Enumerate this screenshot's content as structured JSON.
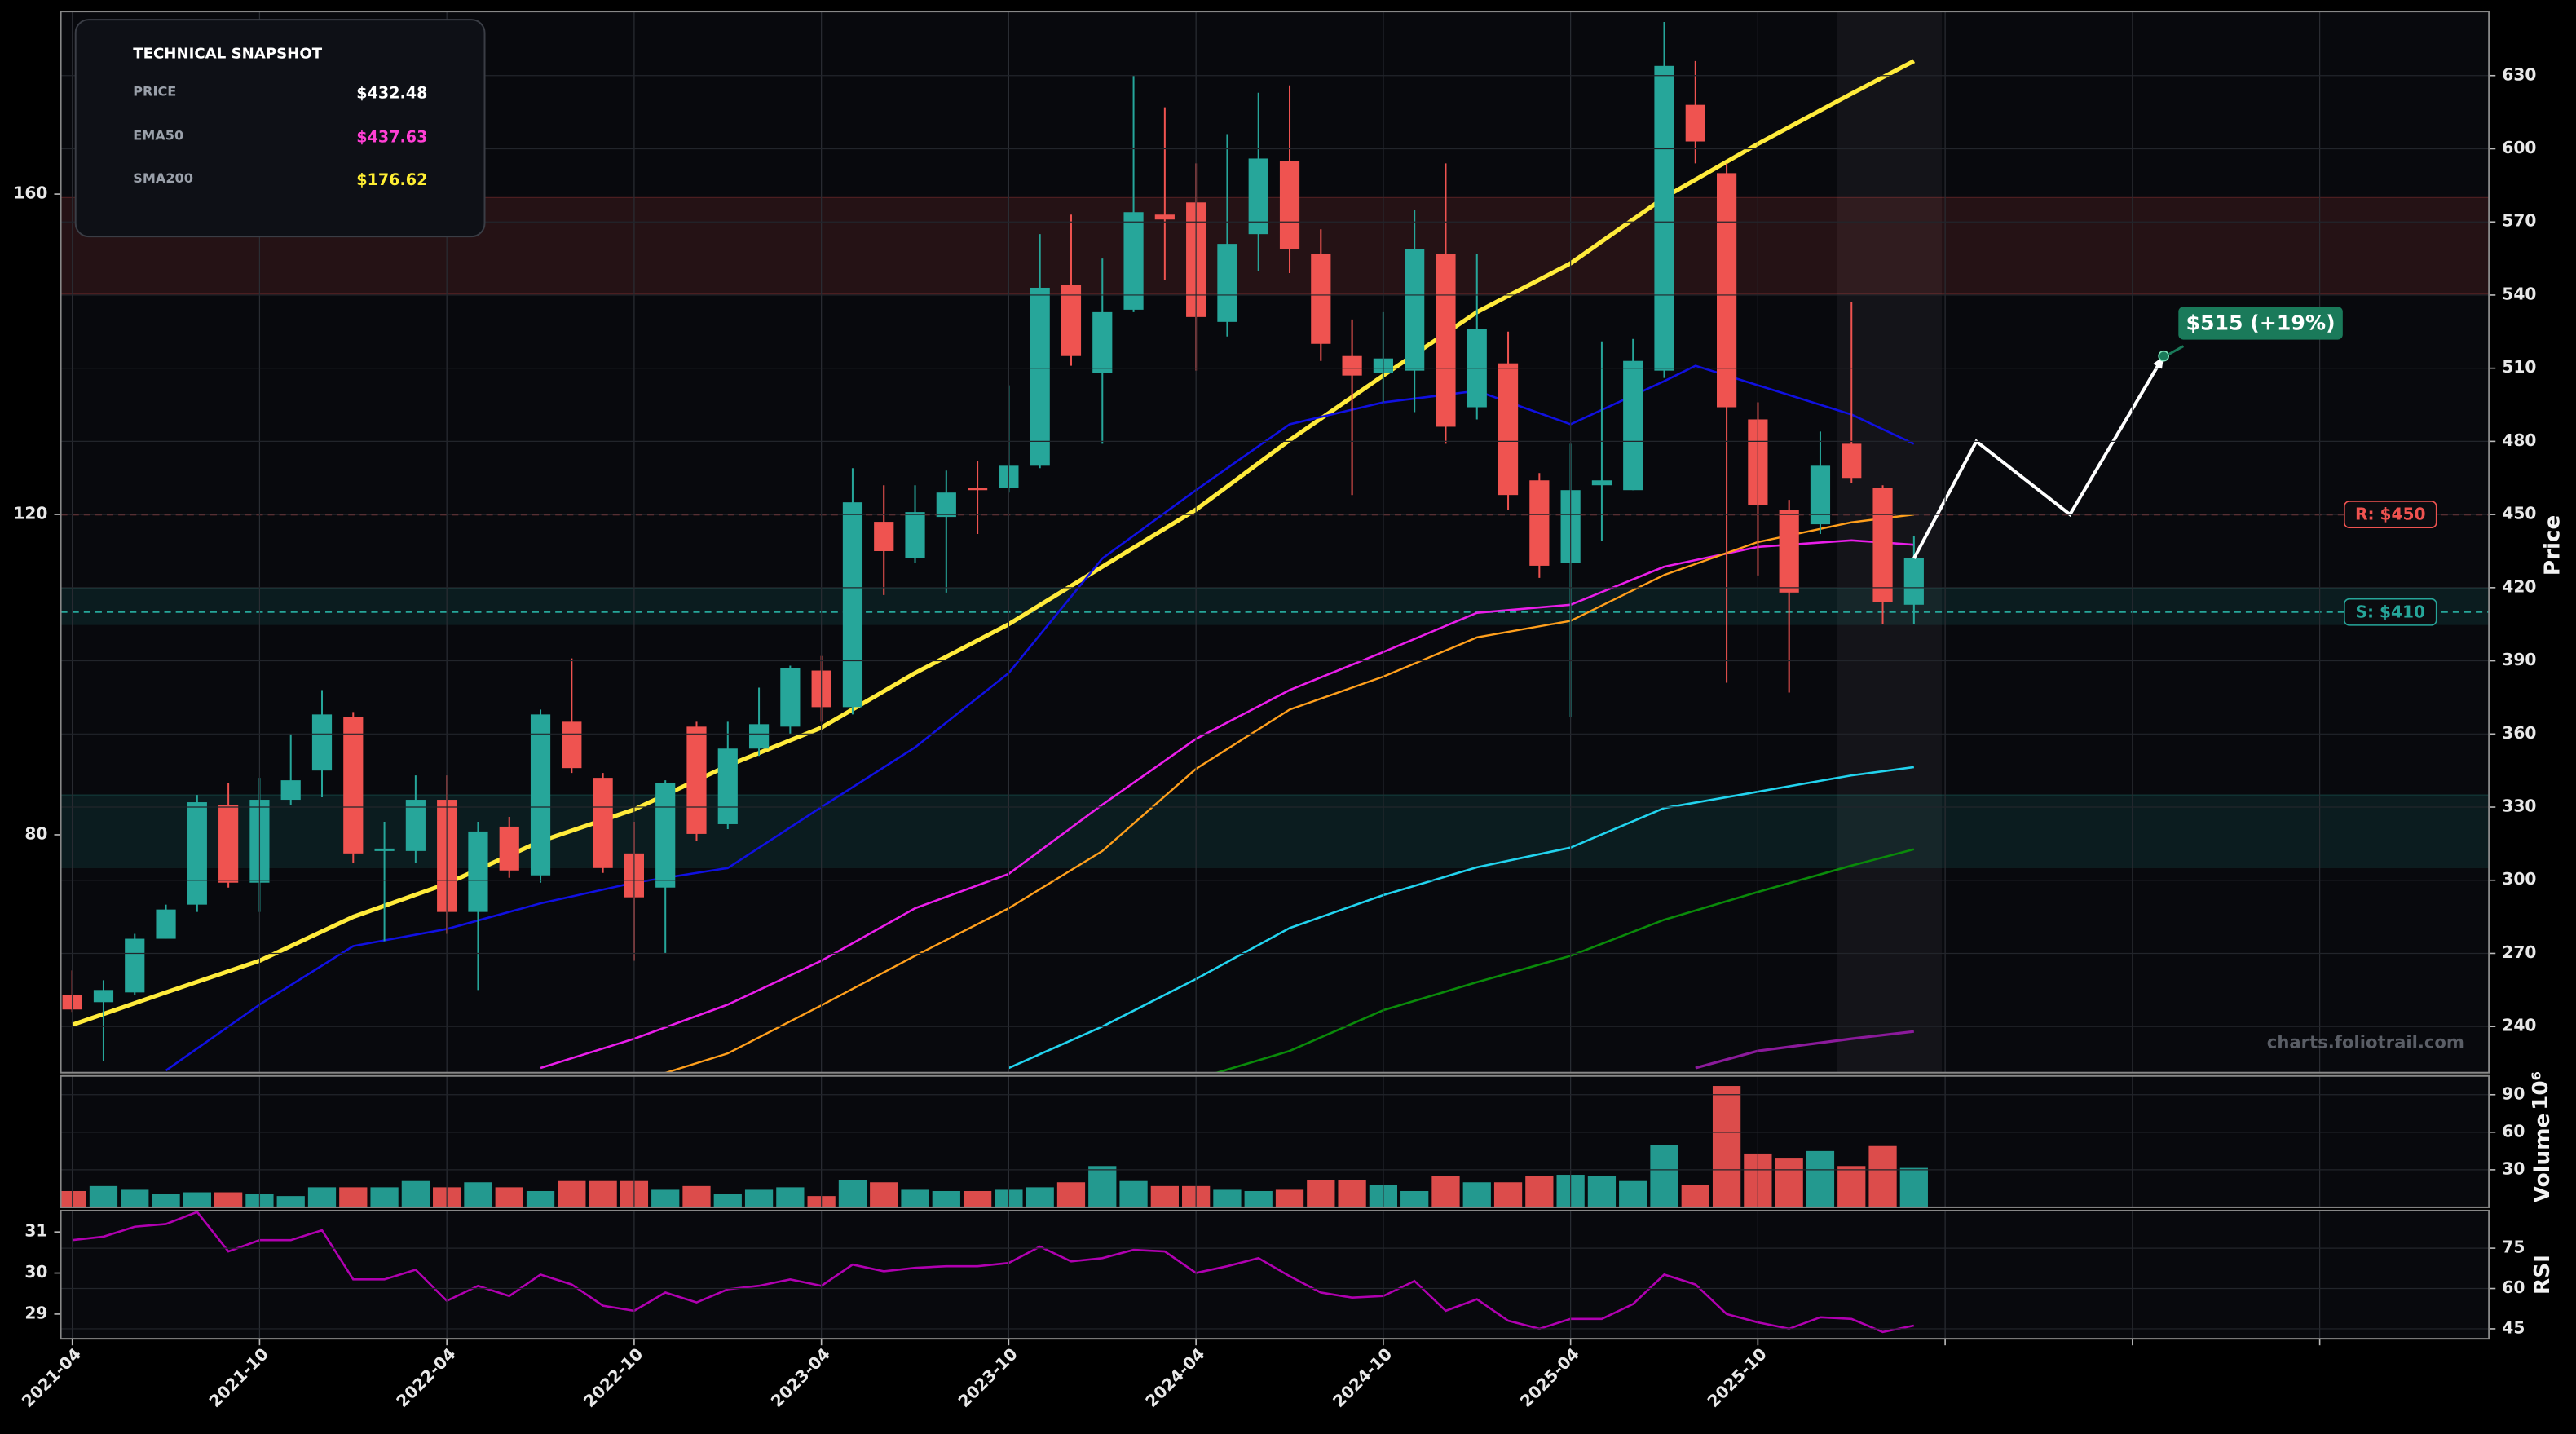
{
  "snapshot": {
    "title": "TECHNICAL SNAPSHOT",
    "rows": [
      {
        "label": "PRICE",
        "value": "$432.48",
        "color": "#ffffff"
      },
      {
        "label": "EMA50",
        "value": "$437.63",
        "color": "#ff3fd4"
      },
      {
        "label": "SMA200",
        "value": "$176.62",
        "color": "#ffee33"
      }
    ]
  },
  "watermark": "charts.foliotrail.com",
  "chart_data": [
    {
      "type": "candlestick",
      "y_label": "Price",
      "up_color": "#26a69a",
      "down_color": "#ef5350",
      "grid": true,
      "x": [
        "2021-04",
        "2021-05",
        "2021-06",
        "2021-07",
        "2021-08",
        "2021-09",
        "2021-10",
        "2021-11",
        "2021-12",
        "2022-01",
        "2022-02",
        "2022-03",
        "2022-04",
        "2022-05",
        "2022-06",
        "2022-07",
        "2022-08",
        "2022-09",
        "2022-10",
        "2022-11",
        "2022-12",
        "2023-01",
        "2023-02",
        "2023-03",
        "2023-04",
        "2023-05",
        "2023-06",
        "2023-07",
        "2023-08",
        "2023-09",
        "2023-10",
        "2023-11",
        "2023-12",
        "2024-01",
        "2024-02",
        "2024-03",
        "2024-04",
        "2024-05",
        "2024-06",
        "2024-07",
        "2024-08",
        "2024-09",
        "2024-10",
        "2024-11",
        "2024-12",
        "2025-01",
        "2025-02",
        "2025-03",
        "2025-04",
        "2025-05",
        "2025-06",
        "2025-07",
        "2025-08",
        "2025-09",
        "2025-10",
        "2025-11",
        "2025-12",
        "2026-01",
        "2026-02",
        "2026-03"
      ],
      "open": [
        253,
        250,
        254,
        276,
        290,
        331,
        299,
        333,
        345,
        367,
        312,
        312,
        333,
        287,
        322,
        302,
        365,
        342,
        311,
        297,
        363,
        323,
        354,
        363,
        386,
        371,
        447,
        432,
        449,
        461,
        461,
        470,
        544,
        508,
        534,
        573,
        578,
        529,
        565,
        595,
        557,
        515,
        508,
        509,
        557,
        494,
        512,
        464,
        430,
        462,
        460,
        509,
        618,
        590,
        489,
        452,
        446,
        479,
        461,
        413
      ],
      "high": [
        263,
        259,
        278,
        290,
        335,
        340,
        342,
        360,
        378,
        369,
        324,
        343,
        343,
        324,
        326,
        370,
        391,
        344,
        324,
        341,
        365,
        365,
        379,
        388,
        392,
        469,
        462,
        462,
        468,
        472,
        503,
        565,
        573,
        555,
        630,
        617,
        594,
        606,
        623,
        626,
        567,
        530,
        533,
        575,
        594,
        557,
        525,
        467,
        479,
        521,
        522,
        652,
        636,
        594,
        496,
        456,
        484,
        537,
        462,
        441
      ],
      "low": [
        246,
        226,
        253,
        276,
        287,
        297,
        287,
        331,
        334,
        307,
        275,
        307,
        278,
        255,
        301,
        299,
        344,
        303,
        267,
        270,
        316,
        321,
        351,
        360,
        365,
        368,
        417,
        430,
        418,
        442,
        459,
        469,
        511,
        479,
        533,
        546,
        509,
        523,
        550,
        549,
        513,
        458,
        496,
        492,
        479,
        489,
        452,
        424,
        367,
        439,
        460,
        506,
        594,
        381,
        425,
        377,
        442,
        463,
        405,
        405
      ],
      "close": [
        247,
        255,
        276,
        288,
        332,
        299,
        333,
        341,
        368,
        311,
        313,
        333,
        287,
        320,
        304,
        368,
        346,
        305,
        293,
        340,
        319,
        354,
        364,
        387,
        371,
        455,
        435,
        451,
        459,
        460,
        470,
        543,
        515,
        533,
        574,
        571,
        531,
        561,
        596,
        559,
        520,
        507,
        514,
        559,
        486,
        526,
        458,
        429,
        460,
        464,
        513,
        634,
        603,
        494,
        454,
        418,
        470,
        465,
        414,
        432
      ],
      "xlim": [
        "2021-04",
        "2027-09"
      ],
      "xticks": [
        "2021-04",
        "2021-10",
        "2022-04",
        "2022-10",
        "2023-04",
        "2023-10",
        "2024-04",
        "2024-10",
        "2025-04",
        "2025-10",
        {
          "value": "2026-04",
          "label": null
        },
        {
          "value": "2026-10",
          "label": null
        },
        {
          "value": "2027-04",
          "label": null
        }
      ],
      "ylim": [
        221.1,
        656.3
      ],
      "yticks": [
        240,
        270,
        300,
        330,
        360,
        390,
        420,
        450,
        480,
        510,
        540,
        570,
        600,
        630
      ],
      "y2lim": [
        50.3,
        182.8
      ],
      "y2ticks": [
        80,
        120,
        160
      ],
      "zones": [
        {
          "from": 540.4,
          "to": 580,
          "color": "#ef5350"
        },
        {
          "from": 405,
          "to": 419.8,
          "color": "#26a69a"
        },
        {
          "from": 305.3,
          "to": 335,
          "color": "#26a69a"
        }
      ],
      "levels": [
        {
          "value": 450,
          "label": "R: $450",
          "color": "#ef5350"
        },
        {
          "value": 410,
          "label": "S: $410",
          "color": "#26a69a"
        }
      ],
      "lines": [
        {
          "color": "#ffeb3b",
          "width": 2.6,
          "x": [
            "2021-04",
            "2021-07",
            "2021-10",
            "2022-01",
            "2022-04",
            "2022-07",
            "2022-10",
            "2023-01",
            "2023-04",
            "2023-07",
            "2023-10",
            "2024-01",
            "2024-04",
            "2024-07",
            "2024-10",
            "2025-01",
            "2025-04",
            "2025-07",
            "2025-10",
            "2026-01",
            "2026-03"
          ],
          "values": [
            240.7,
            254,
            267,
            285,
            298.6,
            316,
            329,
            347,
            362.6,
            385,
            405,
            428.6,
            452,
            480.5,
            507,
            533,
            553,
            580,
            602,
            622.6,
            636
          ]
        },
        {
          "color": "#1010e0",
          "width": 1.3,
          "x": [
            "2021-07",
            "2021-10",
            "2022-01",
            "2022-04",
            "2022-07",
            "2022-10",
            "2023-01",
            "2023-04",
            "2023-07",
            "2023-10",
            "2024-01",
            "2024-04",
            "2024-07",
            "2024-10",
            "2025-01",
            "2025-04",
            "2025-07",
            "2025-08",
            "2025-10",
            "2026-01",
            "2026-03"
          ],
          "values": [
            222,
            249,
            273,
            280,
            290.5,
            299,
            305,
            330,
            354.5,
            385,
            432,
            460,
            487,
            496,
            500.7,
            487,
            504.7,
            511,
            503,
            491,
            479
          ]
        },
        {
          "color": "#e91ee9",
          "width": 1.3,
          "x": [
            "2022-07",
            "2022-10",
            "2023-01",
            "2023-04",
            "2023-07",
            "2023-10",
            "2024-01",
            "2024-04",
            "2024-07",
            "2024-10",
            "2025-01",
            "2025-04",
            "2025-07",
            "2025-10",
            "2026-01",
            "2026-03"
          ],
          "values": [
            223,
            235,
            249,
            267,
            288.5,
            302.6,
            331,
            358,
            378,
            393.6,
            409.7,
            413,
            428.6,
            436.7,
            439.4,
            437.6
          ]
        },
        {
          "color": "#ff9f1c",
          "width": 1.2,
          "x": [
            "2022-10",
            "2023-01",
            "2023-04",
            "2023-07",
            "2023-10",
            "2024-01",
            "2024-04",
            "2024-07",
            "2024-10",
            "2025-01",
            "2025-04",
            "2025-07",
            "2025-10",
            "2026-01",
            "2026-03"
          ],
          "values": [
            217,
            229,
            248.7,
            269,
            288.5,
            312,
            345.7,
            370,
            383.5,
            399.6,
            406.4,
            425.2,
            438.7,
            446.8,
            450
          ]
        },
        {
          "color": "#22d3ee",
          "width": 1.3,
          "x": [
            "2023-10",
            "2024-01",
            "2024-04",
            "2024-07",
            "2024-10",
            "2025-01",
            "2025-04",
            "2025-07",
            "2025-10",
            "2026-01",
            "2026-03"
          ],
          "values": [
            223,
            240,
            259.5,
            280.4,
            293.9,
            305.3,
            313.4,
            329.6,
            336.3,
            343,
            346.4
          ]
        },
        {
          "color": "#0a8a0a",
          "width": 1.3,
          "x": [
            "2024-04",
            "2024-07",
            "2024-10",
            "2025-01",
            "2025-04",
            "2025-07",
            "2025-10",
            "2026-01",
            "2026-03"
          ],
          "values": [
            218.5,
            230,
            246.7,
            258.2,
            269,
            283.8,
            295.2,
            306,
            312.7
          ]
        },
        {
          "color": "#8b1a9b",
          "width": 1.6,
          "x": [
            "2025-08",
            "2025-10",
            "2026-01",
            "2026-03"
          ],
          "values": [
            223,
            230,
            235,
            238
          ]
        }
      ],
      "projection": {
        "x": [
          "2026-03",
          "2026-05",
          "2026-08",
          "2026-11"
        ],
        "values": [
          432,
          480,
          450,
          515
        ],
        "label": "$515 (+19%)",
        "color": "#ffffff"
      }
    },
    {
      "type": "bar",
      "y_label": "Volume",
      "offset_text": "10⁶",
      "values": [
        13,
        17,
        14,
        10.5,
        12,
        12,
        10.5,
        9,
        16,
        16,
        16,
        21,
        16,
        20,
        16,
        13,
        21,
        21,
        21,
        14,
        17,
        10.5,
        14,
        16,
        9,
        22,
        20,
        14,
        13,
        13,
        14,
        16,
        20,
        33,
        21,
        17,
        17,
        14,
        13,
        14,
        22,
        22,
        18,
        13,
        25,
        20,
        20,
        25,
        26,
        25,
        21,
        50,
        18,
        97,
        43,
        39,
        45,
        33,
        49,
        31.5
      ],
      "ylim": [
        0,
        105
      ],
      "yticks": [
        30,
        60,
        90
      ]
    },
    {
      "type": "line",
      "y_label": "RSI",
      "color": "#b000b0",
      "values": [
        78,
        79.3,
        83,
        84,
        88.5,
        73.8,
        78,
        78,
        81.7,
        63.4,
        63.4,
        67,
        55.4,
        61,
        57.2,
        65.2,
        61.5,
        53.6,
        51.7,
        58.5,
        54.8,
        59.7,
        61,
        63.4,
        61,
        68.9,
        66.4,
        67.7,
        68.3,
        68.3,
        69.5,
        75.6,
        70.1,
        71.3,
        74.4,
        73.8,
        65.8,
        68.3,
        71.3,
        64.6,
        58.5,
        56.6,
        57.2,
        62.8,
        51.7,
        56,
        48,
        45,
        48.7,
        48.7,
        54.2,
        65.2,
        61.5,
        50.5,
        47.4,
        45,
        49.3,
        48.7,
        43.8,
        46.2
      ],
      "ylim": [
        41.3,
        89
      ],
      "yticks": [
        45,
        60,
        75
      ],
      "y2lim": [
        28.4,
        31.52
      ],
      "y2ticks": [
        29,
        30,
        31
      ]
    }
  ]
}
